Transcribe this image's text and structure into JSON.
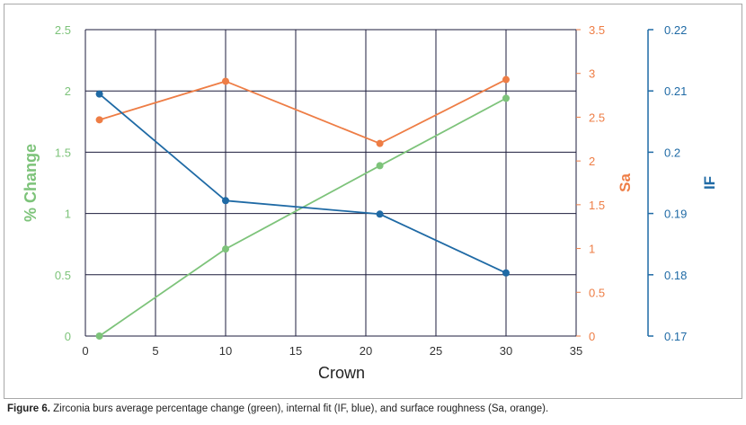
{
  "chart_data": {
    "type": "line",
    "xlabel": "Crown",
    "xlim": [
      0,
      35
    ],
    "xticks": [
      "0",
      "5",
      "10",
      "15",
      "20",
      "25",
      "30",
      "35"
    ],
    "axes": {
      "left": {
        "label": "% Change",
        "color": "#7dc37a",
        "ylim": [
          0,
          2.5
        ],
        "ticks": [
          "0",
          "0.5",
          "1",
          "1.5",
          "2",
          "2.5"
        ]
      },
      "right1": {
        "label": "Sa",
        "color": "#ee7d45",
        "ylim": [
          0,
          3.5
        ],
        "ticks": [
          "0",
          "0.5",
          "1",
          "1.5",
          "2",
          "2.5",
          "3",
          "3.5"
        ]
      },
      "right2": {
        "label": "IF",
        "color": "#1f6aa5",
        "ylim": [
          0.17,
          0.22
        ],
        "ticks": [
          "0.17",
          "0.18",
          "0.19",
          "0.2",
          "0.21",
          "0.22"
        ]
      }
    },
    "series": [
      {
        "axis": "left",
        "color": "#7dc37a",
        "x": [
          1,
          10,
          21,
          30
        ],
        "values": [
          0,
          0.71,
          1.39,
          1.94
        ]
      },
      {
        "axis": "right1",
        "color": "#ee7d45",
        "x": [
          1,
          10,
          21,
          30
        ],
        "values": [
          2.47,
          2.91,
          2.2,
          2.93
        ]
      },
      {
        "axis": "right2",
        "color": "#1f6aa5",
        "x": [
          1,
          10,
          21,
          30
        ],
        "values": [
          0.2095,
          0.1921,
          0.1899,
          0.1803
        ]
      }
    ],
    "grid": true
  },
  "caption": {
    "figure_label": "Figure 6.",
    "text": " Zirconia burs average percentage change (green), internal fit (IF, blue), and surface roughness (Sa, orange)."
  }
}
